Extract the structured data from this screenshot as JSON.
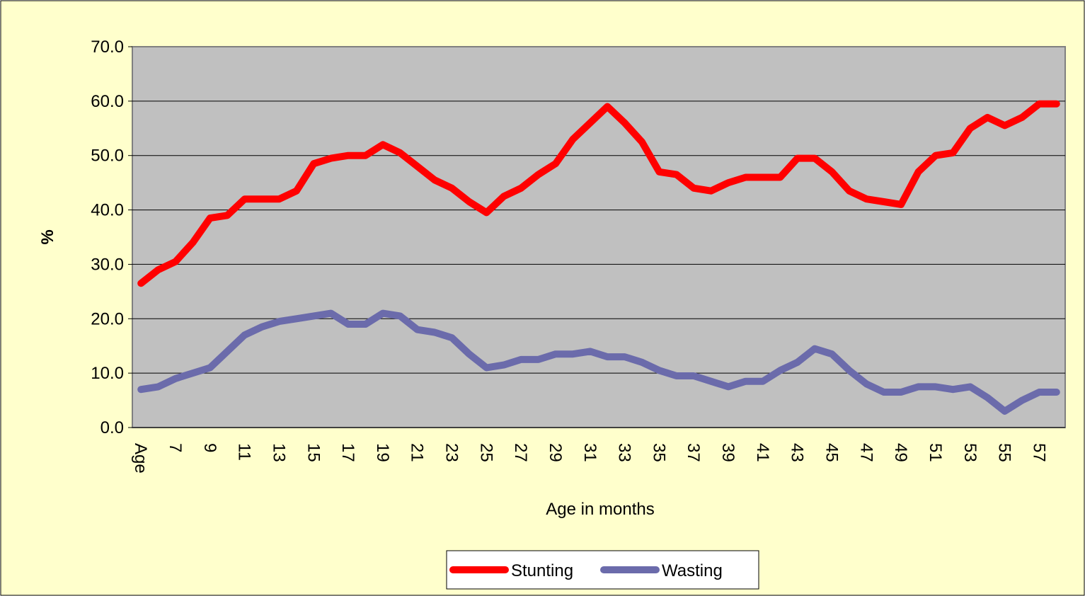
{
  "chart_data": {
    "type": "line",
    "x_label": "Age in months",
    "y_label": "%",
    "categories": [
      "Age",
      null,
      "7",
      null,
      "9",
      null,
      "11",
      null,
      "13",
      null,
      "15",
      null,
      "17",
      null,
      "19",
      null,
      "21",
      null,
      "23",
      null,
      "25",
      null,
      "27",
      null,
      "29",
      null,
      "31",
      null,
      "33",
      null,
      "35",
      null,
      "37",
      null,
      "39",
      null,
      "41",
      null,
      "43",
      null,
      "45",
      null,
      "47",
      null,
      "49",
      null,
      "51",
      null,
      "53",
      null,
      "55",
      null,
      "57",
      null
    ],
    "series": [
      {
        "name": "Stunting",
        "color": "#ff0000",
        "values": [
          26.5,
          29,
          30.5,
          34,
          38.5,
          39,
          42,
          42,
          42,
          43.5,
          48.5,
          49.5,
          50,
          50,
          52,
          50.5,
          48,
          45.5,
          44,
          41.5,
          39.5,
          42.5,
          44,
          46.5,
          48.5,
          53,
          56,
          59,
          56,
          52.5,
          47,
          46.5,
          44,
          43.5,
          45,
          46,
          46,
          46,
          49.5,
          49.5,
          47,
          43.5,
          42,
          41.5,
          41,
          47,
          50,
          50.5,
          55,
          57,
          55.5,
          57,
          59.5,
          59.5
        ]
      },
      {
        "name": "Wasting",
        "color": "#6b6bab",
        "values": [
          7,
          7.5,
          9,
          10,
          11,
          14,
          17,
          18.5,
          19.5,
          20,
          20.5,
          21,
          19,
          19,
          21,
          20.5,
          18,
          17.5,
          16.5,
          13.5,
          11,
          11.5,
          12.5,
          12.5,
          13.5,
          13.5,
          14,
          13,
          13,
          12,
          10.5,
          9.5,
          9.5,
          8.5,
          7.5,
          8.5,
          8.5,
          10.5,
          12,
          14.5,
          13.5,
          10.5,
          8,
          6.5,
          6.5,
          7.5,
          7.5,
          7,
          7.5,
          5.5,
          3,
          5,
          6.5,
          6.5
        ]
      }
    ],
    "ylim": [
      0,
      70
    ],
    "yticks": [
      {
        "value": 0,
        "label": "0.0"
      },
      {
        "value": 10,
        "label": "10.0"
      },
      {
        "value": 20,
        "label": "20.0"
      },
      {
        "value": 30,
        "label": "30.0"
      },
      {
        "value": 40,
        "label": "40.0"
      },
      {
        "value": 50,
        "label": "50.0"
      },
      {
        "value": 60,
        "label": "60.0"
      },
      {
        "value": 70,
        "label": "70.0"
      }
    ],
    "grid": true,
    "legend": "bottom"
  }
}
